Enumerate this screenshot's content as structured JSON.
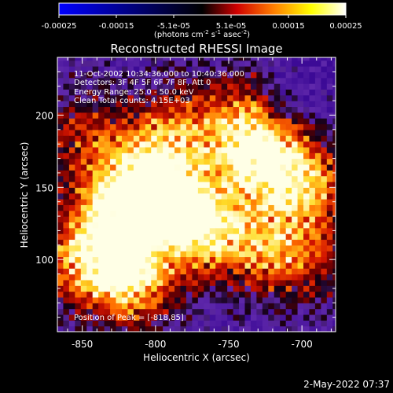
{
  "colorbar": {
    "ticks": [
      "-0.00025",
      "-0.00015",
      "-5.1e-05",
      "5.1e-05",
      "0.00015",
      "0.00025"
    ],
    "units_main": "(photons cm",
    "units_exp1": "-2",
    "units_mid": " s",
    "units_exp2": "-1",
    "units_end": " asec",
    "units_exp3": "-2",
    "units_close": ")",
    "colors": [
      "#0000ff",
      "#000000",
      "#d00000",
      "#ff8000",
      "#ffff00",
      "#ffffff"
    ]
  },
  "annotations": {
    "time": "11-Oct-2002 10:34:36.000 to 10:40:36.000",
    "detectors": "Detectors: 3F 4F 5F 6F 7F 8F, Att 0",
    "energy": "Energy Range: 25.0 - 50.0 keV",
    "clean": "Clean     Total counts: 4.15E+03",
    "peak": "Position of Peak = [-818,85]"
  },
  "footer": {
    "timestamp": "2-May-2022 07:37"
  },
  "chart_data": {
    "type": "heatmap",
    "title": "Reconstructed RHESSI Image",
    "xlabel": "Heliocentric X (arcsec)",
    "ylabel": "Heliocentric Y (arcsec)",
    "xlim": [
      -867,
      -677
    ],
    "ylim": [
      50,
      240
    ],
    "xticks": [
      -850,
      -800,
      -750,
      -700
    ],
    "xtick_labels": [
      "-850",
      "-800",
      "-750",
      "-700"
    ],
    "yticks": [
      100,
      150,
      200
    ],
    "ytick_labels": [
      "100",
      "150",
      "200"
    ],
    "colormap": "blue-black-red-yellow-white",
    "value_range": [
      -0.00025,
      0.00025
    ],
    "peak_position": [
      -818,
      85
    ],
    "bright_regions": [
      {
        "x": -818,
        "y": 85,
        "level": 1.0
      },
      {
        "x": -733,
        "y": 170,
        "level": 0.9
      },
      {
        "x": -700,
        "y": 150,
        "level": 0.85
      },
      {
        "x": -790,
        "y": 135,
        "level": 0.8
      },
      {
        "x": -835,
        "y": 130,
        "level": 0.8
      },
      {
        "x": -765,
        "y": 118,
        "level": 0.75
      },
      {
        "x": -812,
        "y": 157,
        "level": 0.7
      },
      {
        "x": -790,
        "y": 185,
        "level": 0.6
      },
      {
        "x": -855,
        "y": 95,
        "level": 0.65
      },
      {
        "x": -745,
        "y": 200,
        "level": 0.5
      },
      {
        "x": -700,
        "y": 100,
        "level": 0.45
      },
      {
        "x": -728,
        "y": 105,
        "level": 0.5
      },
      {
        "x": -850,
        "y": 185,
        "level": 0.45
      }
    ]
  }
}
